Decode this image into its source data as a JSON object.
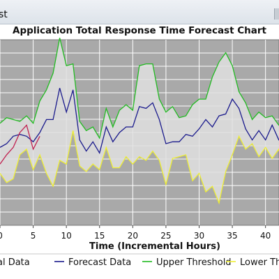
{
  "window": {
    "title_fragment": "st"
  },
  "chart_data": {
    "type": "line",
    "title": "Application Total Response Time Forecast Chart",
    "xlabel": "Time (Incremental Hours)",
    "ylabel": "",
    "x_ticks": [
      0,
      5,
      10,
      15,
      20,
      25,
      30,
      35,
      40
    ],
    "xlim": [
      0,
      43
    ],
    "ylim": [
      0,
      100
    ],
    "grid": true,
    "band_fill": "#e0e0e0",
    "plot_background": "#a9a9a9",
    "legend_position": "bottom",
    "legend_labels": [
      "al Data",
      "Forecast Data",
      "Upper Threshold",
      "Lower Thre"
    ],
    "series": [
      {
        "name": "Actual Data",
        "color": "#c02050",
        "x": [
          0,
          1,
          2,
          3,
          4,
          5,
          6
        ],
        "y": [
          33,
          38,
          42,
          50,
          54,
          41,
          48
        ]
      },
      {
        "name": "Forecast Data",
        "color": "#1a1a8c",
        "x": [
          0,
          1,
          2,
          3,
          4,
          5,
          6,
          7,
          8,
          9,
          10,
          11,
          12,
          13,
          14,
          15,
          16,
          17,
          18,
          19,
          20,
          21,
          22,
          23,
          24,
          25,
          26,
          27,
          28,
          29,
          30,
          31,
          32,
          33,
          34,
          35,
          36,
          37,
          38,
          39,
          40,
          41,
          42,
          43
        ],
        "y": [
          42,
          44,
          48,
          49,
          48,
          45,
          50,
          57,
          57,
          74,
          61,
          73,
          46,
          40,
          45,
          39,
          53,
          45,
          50,
          53,
          53,
          64,
          63,
          66,
          57,
          44,
          45,
          45,
          49,
          48,
          52,
          57,
          53,
          59,
          60,
          68,
          63,
          52,
          46,
          51,
          46,
          54,
          46,
          43
        ]
      },
      {
        "name": "Upper Threshold",
        "color": "#22bb22",
        "x": [
          0,
          1,
          2,
          3,
          4,
          5,
          6,
          7,
          8,
          9,
          10,
          11,
          12,
          13,
          14,
          15,
          16,
          17,
          18,
          19,
          20,
          21,
          22,
          23,
          24,
          25,
          26,
          27,
          28,
          29,
          30,
          31,
          32,
          33,
          34,
          35,
          36,
          37,
          38,
          39,
          40,
          41,
          42,
          43
        ],
        "y": [
          55,
          58,
          57,
          56,
          59,
          55,
          67,
          73,
          82,
          101,
          86,
          87,
          56,
          51,
          53,
          47,
          63,
          53,
          62,
          65,
          62,
          86,
          87,
          87,
          68,
          61,
          64,
          58,
          59,
          65,
          68,
          68,
          80,
          88,
          93,
          86,
          72,
          66,
          57,
          61,
          58,
          59,
          54,
          51
        ]
      },
      {
        "name": "Lower Threshold",
        "color": "#eeee33",
        "x": [
          0,
          1,
          2,
          3,
          4,
          5,
          6,
          7,
          8,
          9,
          10,
          11,
          12,
          13,
          14,
          15,
          16,
          17,
          18,
          19,
          20,
          21,
          22,
          23,
          24,
          25,
          26,
          27,
          28,
          29,
          30,
          31,
          32,
          33,
          34,
          35,
          36,
          37,
          38,
          39,
          40,
          41,
          42,
          43
        ],
        "y": [
          28,
          23,
          25,
          38,
          41,
          30,
          38,
          28,
          21,
          35,
          33,
          51,
          32,
          29,
          33,
          30,
          42,
          31,
          31,
          37,
          33,
          37,
          35,
          40,
          35,
          22,
          36,
          37,
          38,
          24,
          28,
          18,
          21,
          12,
          29,
          38,
          48,
          41,
          44,
          37,
          42,
          36,
          41,
          27
        ]
      }
    ]
  }
}
